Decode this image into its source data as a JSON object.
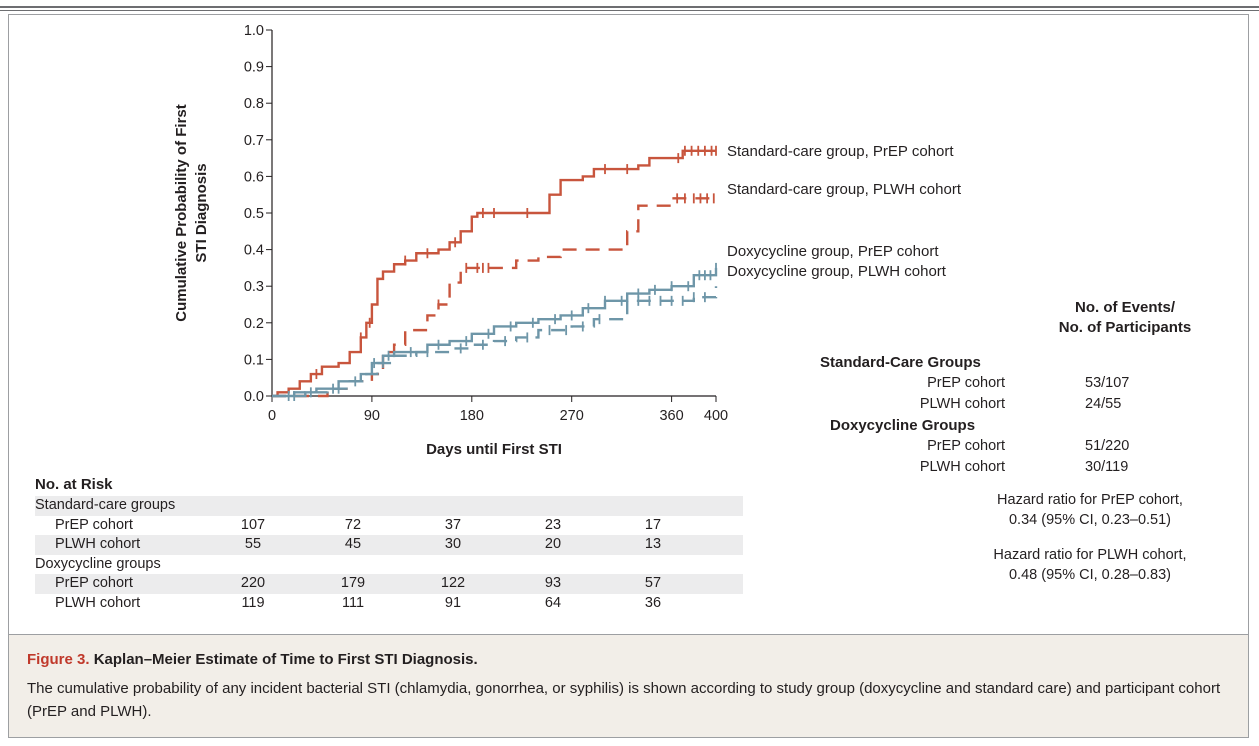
{
  "chart_data": {
    "type": "line",
    "subtype": "kaplan-meier-step",
    "ylabel": "Cumulative Probability of First STI Diagnosis",
    "xlabel": "Days until First STI",
    "xlim": [
      0,
      400
    ],
    "ylim": [
      0,
      1.0
    ],
    "x_ticks": [
      0,
      90,
      180,
      270,
      360,
      400
    ],
    "y_ticks": [
      "0.0",
      "0.1",
      "0.2",
      "0.3",
      "0.4",
      "0.5",
      "0.6",
      "0.7",
      "0.8",
      "0.9",
      "1.0"
    ],
    "grid": false,
    "series": [
      {
        "name": "Standard-care group, PrEP cohort",
        "color": "#c8553d",
        "dash": "solid",
        "points": [
          [
            0,
            0
          ],
          [
            5,
            0.01
          ],
          [
            15,
            0.02
          ],
          [
            25,
            0.04
          ],
          [
            35,
            0.06
          ],
          [
            45,
            0.08
          ],
          [
            60,
            0.09
          ],
          [
            70,
            0.12
          ],
          [
            80,
            0.16
          ],
          [
            85,
            0.2
          ],
          [
            90,
            0.25
          ],
          [
            95,
            0.32
          ],
          [
            100,
            0.34
          ],
          [
            110,
            0.36
          ],
          [
            120,
            0.37
          ],
          [
            130,
            0.39
          ],
          [
            150,
            0.4
          ],
          [
            160,
            0.42
          ],
          [
            170,
            0.45
          ],
          [
            180,
            0.49
          ],
          [
            185,
            0.5
          ],
          [
            240,
            0.5
          ],
          [
            250,
            0.55
          ],
          [
            260,
            0.59
          ],
          [
            280,
            0.6
          ],
          [
            290,
            0.62
          ],
          [
            330,
            0.63
          ],
          [
            340,
            0.65
          ],
          [
            370,
            0.67
          ],
          [
            400,
            0.67
          ]
        ],
        "censors": [
          40,
          80,
          88,
          120,
          140,
          165,
          190,
          200,
          230,
          300,
          320,
          366,
          372,
          378,
          384,
          390,
          396,
          400
        ]
      },
      {
        "name": "Standard-care group, PLWH cohort",
        "color": "#c8553d",
        "dash": "dashed",
        "points": [
          [
            0,
            0
          ],
          [
            40,
            0
          ],
          [
            50,
            0.02
          ],
          [
            70,
            0.04
          ],
          [
            90,
            0.06
          ],
          [
            100,
            0.12
          ],
          [
            110,
            0.14
          ],
          [
            120,
            0.18
          ],
          [
            140,
            0.22
          ],
          [
            150,
            0.25
          ],
          [
            160,
            0.31
          ],
          [
            170,
            0.35
          ],
          [
            200,
            0.35
          ],
          [
            220,
            0.37
          ],
          [
            240,
            0.38
          ],
          [
            260,
            0.4
          ],
          [
            320,
            0.45
          ],
          [
            330,
            0.52
          ],
          [
            360,
            0.54
          ],
          [
            400,
            0.54
          ]
        ],
        "censors": [
          150,
          175,
          185,
          190,
          195,
          365,
          372,
          380,
          386,
          392,
          398
        ]
      },
      {
        "name": "Doxycycline group, PrEP cohort",
        "color": "#6e96a8",
        "dash": "solid",
        "points": [
          [
            0,
            0
          ],
          [
            20,
            0.01
          ],
          [
            40,
            0.02
          ],
          [
            60,
            0.04
          ],
          [
            80,
            0.06
          ],
          [
            90,
            0.09
          ],
          [
            100,
            0.11
          ],
          [
            110,
            0.12
          ],
          [
            140,
            0.14
          ],
          [
            160,
            0.15
          ],
          [
            180,
            0.17
          ],
          [
            200,
            0.19
          ],
          [
            220,
            0.2
          ],
          [
            240,
            0.21
          ],
          [
            260,
            0.22
          ],
          [
            280,
            0.24
          ],
          [
            300,
            0.26
          ],
          [
            320,
            0.28
          ],
          [
            340,
            0.29
          ],
          [
            360,
            0.3
          ],
          [
            380,
            0.33
          ],
          [
            400,
            0.35
          ]
        ],
        "censors": [
          15,
          35,
          55,
          75,
          92,
          105,
          125,
          150,
          175,
          195,
          215,
          235,
          255,
          270,
          285,
          300,
          315,
          330,
          345,
          360,
          375,
          385,
          390,
          395,
          400
        ]
      },
      {
        "name": "Doxycycline group, PLWH cohort",
        "color": "#6e96a8",
        "dash": "dashed",
        "points": [
          [
            0,
            0
          ],
          [
            30,
            0.01
          ],
          [
            50,
            0.02
          ],
          [
            70,
            0.04
          ],
          [
            85,
            0.06
          ],
          [
            95,
            0.09
          ],
          [
            110,
            0.11
          ],
          [
            130,
            0.12
          ],
          [
            160,
            0.13
          ],
          [
            180,
            0.14
          ],
          [
            200,
            0.15
          ],
          [
            220,
            0.16
          ],
          [
            240,
            0.18
          ],
          [
            270,
            0.19
          ],
          [
            290,
            0.21
          ],
          [
            320,
            0.26
          ],
          [
            380,
            0.27
          ],
          [
            400,
            0.3
          ]
        ],
        "censors": [
          20,
          60,
          100,
          140,
          170,
          190,
          210,
          230,
          250,
          265,
          280,
          295,
          330,
          340,
          350,
          360,
          370,
          380,
          390
        ]
      }
    ],
    "legend_placement": "right-of-lines"
  },
  "risk_table": {
    "title": "No. at Risk",
    "columns": [
      0,
      90,
      180,
      270,
      360
    ],
    "rows": [
      {
        "label": "Standard-care groups",
        "indent": false,
        "values": []
      },
      {
        "label": "PrEP cohort",
        "indent": true,
        "values": [
          "107",
          "72",
          "37",
          "23",
          "17"
        ]
      },
      {
        "label": "PLWH cohort",
        "indent": true,
        "values": [
          "55",
          "45",
          "30",
          "20",
          "13"
        ]
      },
      {
        "label": "Doxycycline groups",
        "indent": false,
        "values": []
      },
      {
        "label": "PrEP cohort",
        "indent": true,
        "values": [
          "220",
          "179",
          "122",
          "93",
          "57"
        ]
      },
      {
        "label": "PLWH cohort",
        "indent": true,
        "values": [
          "119",
          "111",
          "91",
          "64",
          "36"
        ]
      }
    ]
  },
  "events": {
    "header_line1": "No. of Events/",
    "header_line2": "No. of Participants",
    "standard_title": "Standard-Care Groups",
    "standard_prep_label": "PrEP cohort",
    "standard_prep_value": "53/107",
    "standard_plwh_label": "PLWH cohort",
    "standard_plwh_value": "24/55",
    "doxy_title": "Doxycycline Groups",
    "doxy_prep_label": "PrEP cohort",
    "doxy_prep_value": "51/220",
    "doxy_plwh_label": "PLWH cohort",
    "doxy_plwh_value": "30/119"
  },
  "hazard": {
    "prep_line1": "Hazard ratio for PrEP cohort,",
    "prep_line2": "0.34 (95% CI, 0.23–0.51)",
    "plwh_line1": "Hazard ratio for PLWH cohort,",
    "plwh_line2": "0.48 (95% CI, 0.28–0.83)"
  },
  "caption": {
    "figure_label": "Figure 3.",
    "title": "Kaplan–Meier Estimate of Time to First STI Diagnosis.",
    "body": "The cumulative probability of any incident bacterial STI (chlamydia, gonorrhea, or syphilis) is shown according to study group (doxycycline and standard care) and participant cohort (PrEP and PLWH)."
  }
}
